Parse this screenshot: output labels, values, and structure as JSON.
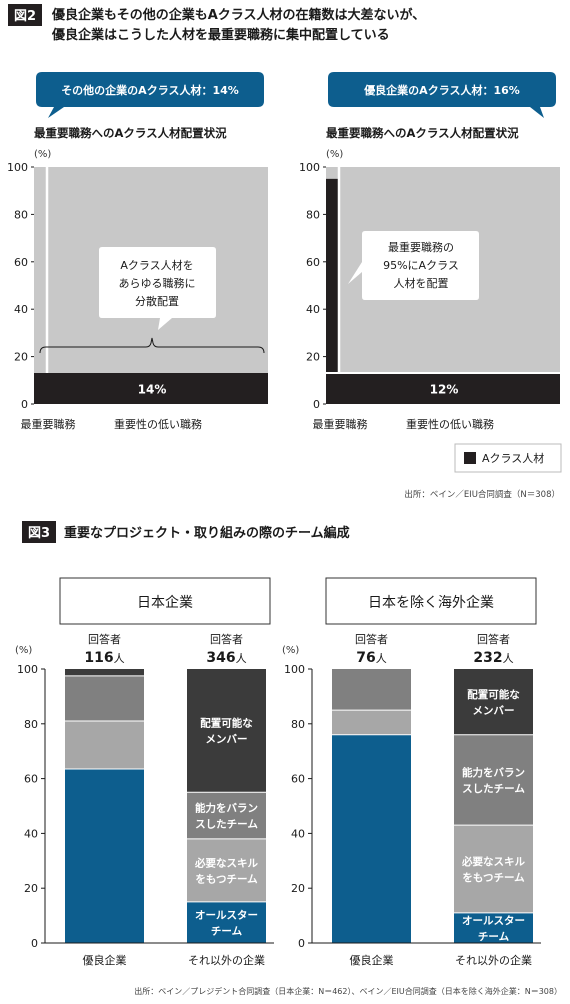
{
  "colors": {
    "blue": "#0d5e8e",
    "black": "#231f20",
    "light_gray": "#c8c8c8",
    "gray_light": "#a7a7a7",
    "gray_mid": "#808080",
    "gray_dark": "#3b3b3b"
  },
  "fig2": {
    "badge": "図2",
    "title_line1": "優良企業もその他の企業もAクラス人材の在籍数は大差ないが、",
    "title_line2": "優良企業はこうした人材を最重要職務に集中配置している",
    "legend_label": "Aクラス人材",
    "source": "出所：ベイン／EIU合同調査（N＝308）"
  },
  "fig3": {
    "badge": "図3",
    "title": "重要なプロジェクト・取り組みの際のチーム編成",
    "source": "出所：ベイン／プレジデント合同調査（日本企業：N＝462）、ベイン／EIU合同調査（日本を除く海外企業：N＝308）"
  },
  "chart_data": [
    {
      "type": "area",
      "header": "その他の企業のAクラス人材：14%",
      "title": "最重要職務へのAクラス人材配置状況",
      "ylabel": "(%)",
      "ylim": [
        0,
        100
      ],
      "yticks": [
        "0",
        "20",
        "40",
        "60",
        "80",
        "100"
      ],
      "x_labels": [
        "最重要職務",
        "重要性の低い職務"
      ],
      "series": [
        {
          "name": "Aクラス人材",
          "band_value": 14,
          "band_label": "14%",
          "key_role_share": 0
        }
      ],
      "callout": [
        "Aクラス人材を",
        "あらゆる職務に",
        "分散配置"
      ]
    },
    {
      "type": "area",
      "header": "優良企業のAクラス人材：16%",
      "title": "最重要職務へのAクラス人材配置状況",
      "ylabel": "(%)",
      "ylim": [
        0,
        100
      ],
      "yticks": [
        "0",
        "20",
        "40",
        "60",
        "80",
        "100"
      ],
      "x_labels": [
        "最重要職務",
        "重要性の低い職務"
      ],
      "series": [
        {
          "name": "Aクラス人材",
          "band_value": 12,
          "band_label": "12%",
          "key_role_share": 95
        }
      ],
      "callout": [
        "最重要職務の",
        "95%にAクラス",
        "人材を配置"
      ]
    },
    {
      "type": "bar",
      "panel_title": "日本企業",
      "ylabel": "(%)",
      "ylim": [
        0,
        100
      ],
      "yticks": [
        "0",
        "20",
        "40",
        "60",
        "80",
        "100"
      ],
      "categories": [
        "優良企業",
        "それ以外の企業"
      ],
      "respondents_label": "回答者",
      "respondents": [
        "116",
        "346"
      ],
      "respondent_unit": "人",
      "series": [
        {
          "name": "オールスターチーム",
          "label_lines": [
            "オールスター",
            "チーム"
          ],
          "color": "#0d5e8e",
          "values": [
            63.5,
            15
          ]
        },
        {
          "name": "必要なスキルをもつチーム",
          "label_lines": [
            "必要なスキル",
            "をもつチーム"
          ],
          "color": "#a7a7a7",
          "values": [
            17.5,
            23
          ]
        },
        {
          "name": "能力をバランスしたチーム",
          "label_lines": [
            "能力をバラン",
            "スしたチーム"
          ],
          "color": "#808080",
          "values": [
            16.5,
            17
          ]
        },
        {
          "name": "配置可能なメンバー",
          "label_lines": [
            "配置可能な",
            "メンバー"
          ],
          "color": "#3b3b3b",
          "values": [
            2.5,
            45
          ]
        }
      ]
    },
    {
      "type": "bar",
      "panel_title": "日本を除く海外企業",
      "ylabel": "(%)",
      "ylim": [
        0,
        100
      ],
      "yticks": [
        "0",
        "20",
        "40",
        "60",
        "80",
        "100"
      ],
      "categories": [
        "優良企業",
        "それ以外の企業"
      ],
      "respondents_label": "回答者",
      "respondents": [
        "76",
        "232"
      ],
      "respondent_unit": "人",
      "series": [
        {
          "name": "オールスターチーム",
          "label_lines": [
            "オールスター",
            "チーム"
          ],
          "color": "#0d5e8e",
          "values": [
            76,
            11
          ]
        },
        {
          "name": "必要なスキルをもつチーム",
          "label_lines": [
            "必要なスキル",
            "をもつチーム"
          ],
          "color": "#a7a7a7",
          "values": [
            9,
            32
          ]
        },
        {
          "name": "能力をバランスしたチーム",
          "label_lines": [
            "能力をバラン",
            "スしたチーム"
          ],
          "color": "#808080",
          "values": [
            15,
            33
          ]
        },
        {
          "name": "配置可能なメンバー",
          "label_lines": [
            "配置可能な",
            "メンバー"
          ],
          "color": "#3b3b3b",
          "values": [
            0,
            24
          ]
        }
      ]
    }
  ]
}
